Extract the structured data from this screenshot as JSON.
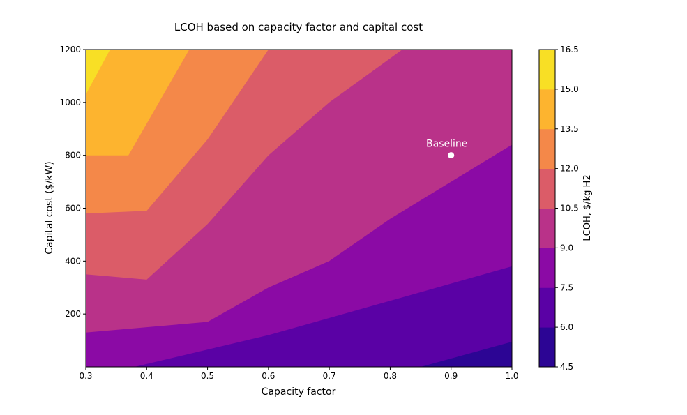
{
  "chart_data": {
    "type": "contourf",
    "title": "LCOH based on capacity factor and capital cost",
    "xlabel": "Capacity factor",
    "ylabel": "Capital cost ($/kW)",
    "xlim": [
      0.3,
      1.0
    ],
    "ylim": [
      0,
      1200
    ],
    "x_ticks": [
      "0.3",
      "0.4",
      "0.5",
      "0.6",
      "0.7",
      "0.8",
      "0.9",
      "1.0"
    ],
    "y_ticks": [
      "200",
      "400",
      "600",
      "800",
      "1000",
      "1200"
    ],
    "colorbar": {
      "label": "LCOH, $/kg H2",
      "levels": [
        "4.5",
        "6.0",
        "7.5",
        "9.0",
        "10.5",
        "12.0",
        "13.5",
        "15.0",
        "16.5"
      ],
      "colors": [
        "#2c0594",
        "#5a01a5",
        "#8b0aa5",
        "#b93289",
        "#db5c68",
        "#f48849",
        "#fdb42f",
        "#f8df25"
      ]
    },
    "contour_boundaries": [
      {
        "level": 6.0,
        "points": [
          [
            0.85,
            0
          ],
          [
            1.0,
            95
          ]
        ]
      },
      {
        "level": 7.5,
        "points": [
          [
            0.38,
            0
          ],
          [
            0.6,
            120
          ],
          [
            0.8,
            250
          ],
          [
            1.0,
            380
          ],
          [
            1.0,
            840
          ]
        ]
      },
      {
        "level": 9.0,
        "points": [
          [
            0.3,
            130
          ],
          [
            0.5,
            170
          ],
          [
            0.6,
            300
          ],
          [
            0.7,
            400
          ],
          [
            0.8,
            560
          ],
          [
            0.9,
            700
          ],
          [
            1.0,
            840
          ]
        ]
      },
      {
        "level": 10.5,
        "points": [
          [
            0.3,
            350
          ],
          [
            0.4,
            330
          ],
          [
            0.5,
            540
          ],
          [
            0.6,
            800
          ],
          [
            0.7,
            1000
          ],
          [
            0.82,
            1200
          ]
        ]
      },
      {
        "level": 12.0,
        "points": [
          [
            0.3,
            580
          ],
          [
            0.4,
            590
          ],
          [
            0.5,
            860
          ],
          [
            0.6,
            1200
          ]
        ]
      },
      {
        "level": 13.5,
        "points": [
          [
            0.3,
            800
          ],
          [
            0.37,
            800
          ],
          [
            0.4,
            920
          ],
          [
            0.47,
            1200
          ]
        ]
      },
      {
        "level": 15.0,
        "points": [
          [
            0.3,
            1030
          ],
          [
            0.34,
            1200
          ]
        ]
      }
    ],
    "annotations": [
      {
        "text": "Baseline",
        "x": 0.9,
        "y": 800
      }
    ]
  }
}
